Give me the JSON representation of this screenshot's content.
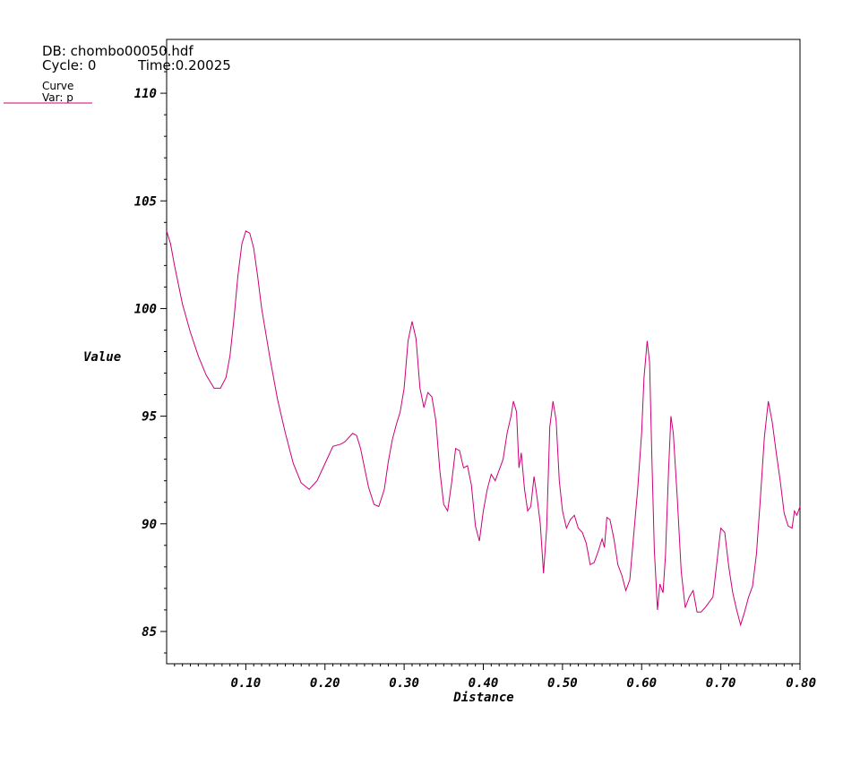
{
  "header": {
    "db_label": "DB: chombo00050.hdf",
    "cycle_label": "Cycle: 0",
    "time_label": "Time:0.20025"
  },
  "legend": {
    "title": "Curve",
    "var_label": "Var: p"
  },
  "chart_data": {
    "type": "line",
    "xlabel": "Distance",
    "ylabel": "Value",
    "xlim": [
      0.0,
      0.8
    ],
    "ylim": [
      83.5,
      112.5
    ],
    "x_ticks": [
      0.1,
      0.2,
      0.3,
      0.4,
      0.5,
      0.6,
      0.7,
      0.8
    ],
    "x_tick_labels": [
      "0.10",
      "0.20",
      "0.30",
      "0.40",
      "0.50",
      "0.60",
      "0.70",
      "0.80"
    ],
    "y_ticks": [
      85,
      90,
      95,
      100,
      105,
      110
    ],
    "y_tick_labels": [
      "85",
      "90",
      "95",
      "100",
      "105",
      "110"
    ],
    "grid": false,
    "legend_position": "top-left",
    "line_color": "#cc0077",
    "series": [
      {
        "name": "p",
        "points": [
          [
            0.0,
            103.6
          ],
          [
            0.005,
            103.0
          ],
          [
            0.01,
            102.0
          ],
          [
            0.02,
            100.2
          ],
          [
            0.03,
            98.9
          ],
          [
            0.04,
            97.8
          ],
          [
            0.05,
            96.9
          ],
          [
            0.06,
            96.3
          ],
          [
            0.068,
            96.3
          ],
          [
            0.075,
            96.8
          ],
          [
            0.08,
            97.8
          ],
          [
            0.085,
            99.5
          ],
          [
            0.09,
            101.5
          ],
          [
            0.095,
            103.0
          ],
          [
            0.1,
            103.6
          ],
          [
            0.105,
            103.5
          ],
          [
            0.11,
            102.8
          ],
          [
            0.115,
            101.5
          ],
          [
            0.12,
            100.0
          ],
          [
            0.13,
            97.8
          ],
          [
            0.14,
            95.8
          ],
          [
            0.15,
            94.2
          ],
          [
            0.16,
            92.8
          ],
          [
            0.17,
            91.9
          ],
          [
            0.18,
            91.6
          ],
          [
            0.19,
            92.0
          ],
          [
            0.2,
            92.8
          ],
          [
            0.21,
            93.6
          ],
          [
            0.22,
            93.7
          ],
          [
            0.225,
            93.8
          ],
          [
            0.235,
            94.2
          ],
          [
            0.24,
            94.1
          ],
          [
            0.245,
            93.5
          ],
          [
            0.25,
            92.6
          ],
          [
            0.255,
            91.7
          ],
          [
            0.262,
            90.9
          ],
          [
            0.268,
            90.8
          ],
          [
            0.275,
            91.6
          ],
          [
            0.28,
            92.9
          ],
          [
            0.285,
            93.9
          ],
          [
            0.29,
            94.6
          ],
          [
            0.295,
            95.2
          ],
          [
            0.3,
            96.3
          ],
          [
            0.305,
            98.5
          ],
          [
            0.31,
            99.4
          ],
          [
            0.315,
            98.6
          ],
          [
            0.32,
            96.3
          ],
          [
            0.325,
            95.4
          ],
          [
            0.33,
            96.1
          ],
          [
            0.335,
            95.9
          ],
          [
            0.34,
            94.8
          ],
          [
            0.345,
            92.5
          ],
          [
            0.35,
            90.9
          ],
          [
            0.355,
            90.6
          ],
          [
            0.36,
            91.9
          ],
          [
            0.365,
            93.5
          ],
          [
            0.37,
            93.4
          ],
          [
            0.375,
            92.6
          ],
          [
            0.38,
            92.7
          ],
          [
            0.385,
            91.8
          ],
          [
            0.39,
            89.9
          ],
          [
            0.395,
            89.2
          ],
          [
            0.4,
            90.6
          ],
          [
            0.405,
            91.6
          ],
          [
            0.41,
            92.3
          ],
          [
            0.415,
            92.0
          ],
          [
            0.42,
            92.5
          ],
          [
            0.425,
            93.0
          ],
          [
            0.43,
            94.2
          ],
          [
            0.435,
            95.0
          ],
          [
            0.438,
            95.7
          ],
          [
            0.442,
            95.2
          ],
          [
            0.445,
            92.6
          ],
          [
            0.448,
            93.3
          ],
          [
            0.452,
            91.6
          ],
          [
            0.456,
            90.6
          ],
          [
            0.46,
            90.8
          ],
          [
            0.464,
            92.2
          ],
          [
            0.468,
            91.2
          ],
          [
            0.472,
            90.0
          ],
          [
            0.476,
            87.7
          ],
          [
            0.48,
            89.8
          ],
          [
            0.484,
            94.5
          ],
          [
            0.488,
            95.7
          ],
          [
            0.492,
            94.8
          ],
          [
            0.496,
            92.0
          ],
          [
            0.5,
            90.6
          ],
          [
            0.505,
            89.8
          ],
          [
            0.51,
            90.2
          ],
          [
            0.515,
            90.4
          ],
          [
            0.52,
            89.8
          ],
          [
            0.525,
            89.6
          ],
          [
            0.53,
            89.1
          ],
          [
            0.535,
            88.1
          ],
          [
            0.54,
            88.2
          ],
          [
            0.545,
            88.7
          ],
          [
            0.55,
            89.3
          ],
          [
            0.553,
            88.9
          ],
          [
            0.556,
            90.3
          ],
          [
            0.56,
            90.2
          ],
          [
            0.565,
            89.3
          ],
          [
            0.57,
            88.1
          ],
          [
            0.575,
            87.6
          ],
          [
            0.58,
            86.9
          ],
          [
            0.585,
            87.4
          ],
          [
            0.59,
            89.5
          ],
          [
            0.595,
            91.6
          ],
          [
            0.6,
            94.2
          ],
          [
            0.603,
            96.8
          ],
          [
            0.607,
            98.5
          ],
          [
            0.61,
            97.5
          ],
          [
            0.613,
            93.0
          ],
          [
            0.616,
            88.8
          ],
          [
            0.62,
            86.0
          ],
          [
            0.623,
            87.2
          ],
          [
            0.627,
            86.8
          ],
          [
            0.63,
            88.5
          ],
          [
            0.634,
            92.5
          ],
          [
            0.637,
            95.0
          ],
          [
            0.64,
            94.2
          ],
          [
            0.645,
            91.2
          ],
          [
            0.65,
            87.8
          ],
          [
            0.655,
            86.1
          ],
          [
            0.66,
            86.6
          ],
          [
            0.665,
            86.9
          ],
          [
            0.67,
            85.9
          ],
          [
            0.675,
            85.9
          ],
          [
            0.68,
            86.1
          ],
          [
            0.69,
            86.6
          ],
          [
            0.695,
            88.2
          ],
          [
            0.7,
            89.8
          ],
          [
            0.705,
            89.6
          ],
          [
            0.71,
            88.0
          ],
          [
            0.715,
            86.8
          ],
          [
            0.72,
            86.0
          ],
          [
            0.725,
            85.3
          ],
          [
            0.73,
            85.9
          ],
          [
            0.735,
            86.6
          ],
          [
            0.74,
            87.1
          ],
          [
            0.745,
            88.6
          ],
          [
            0.75,
            91.2
          ],
          [
            0.755,
            94.0
          ],
          [
            0.76,
            95.7
          ],
          [
            0.765,
            94.7
          ],
          [
            0.77,
            93.3
          ],
          [
            0.775,
            92.0
          ],
          [
            0.78,
            90.5
          ],
          [
            0.785,
            89.9
          ],
          [
            0.79,
            89.8
          ],
          [
            0.793,
            90.6
          ],
          [
            0.796,
            90.4
          ],
          [
            0.8,
            90.8
          ]
        ]
      }
    ]
  }
}
